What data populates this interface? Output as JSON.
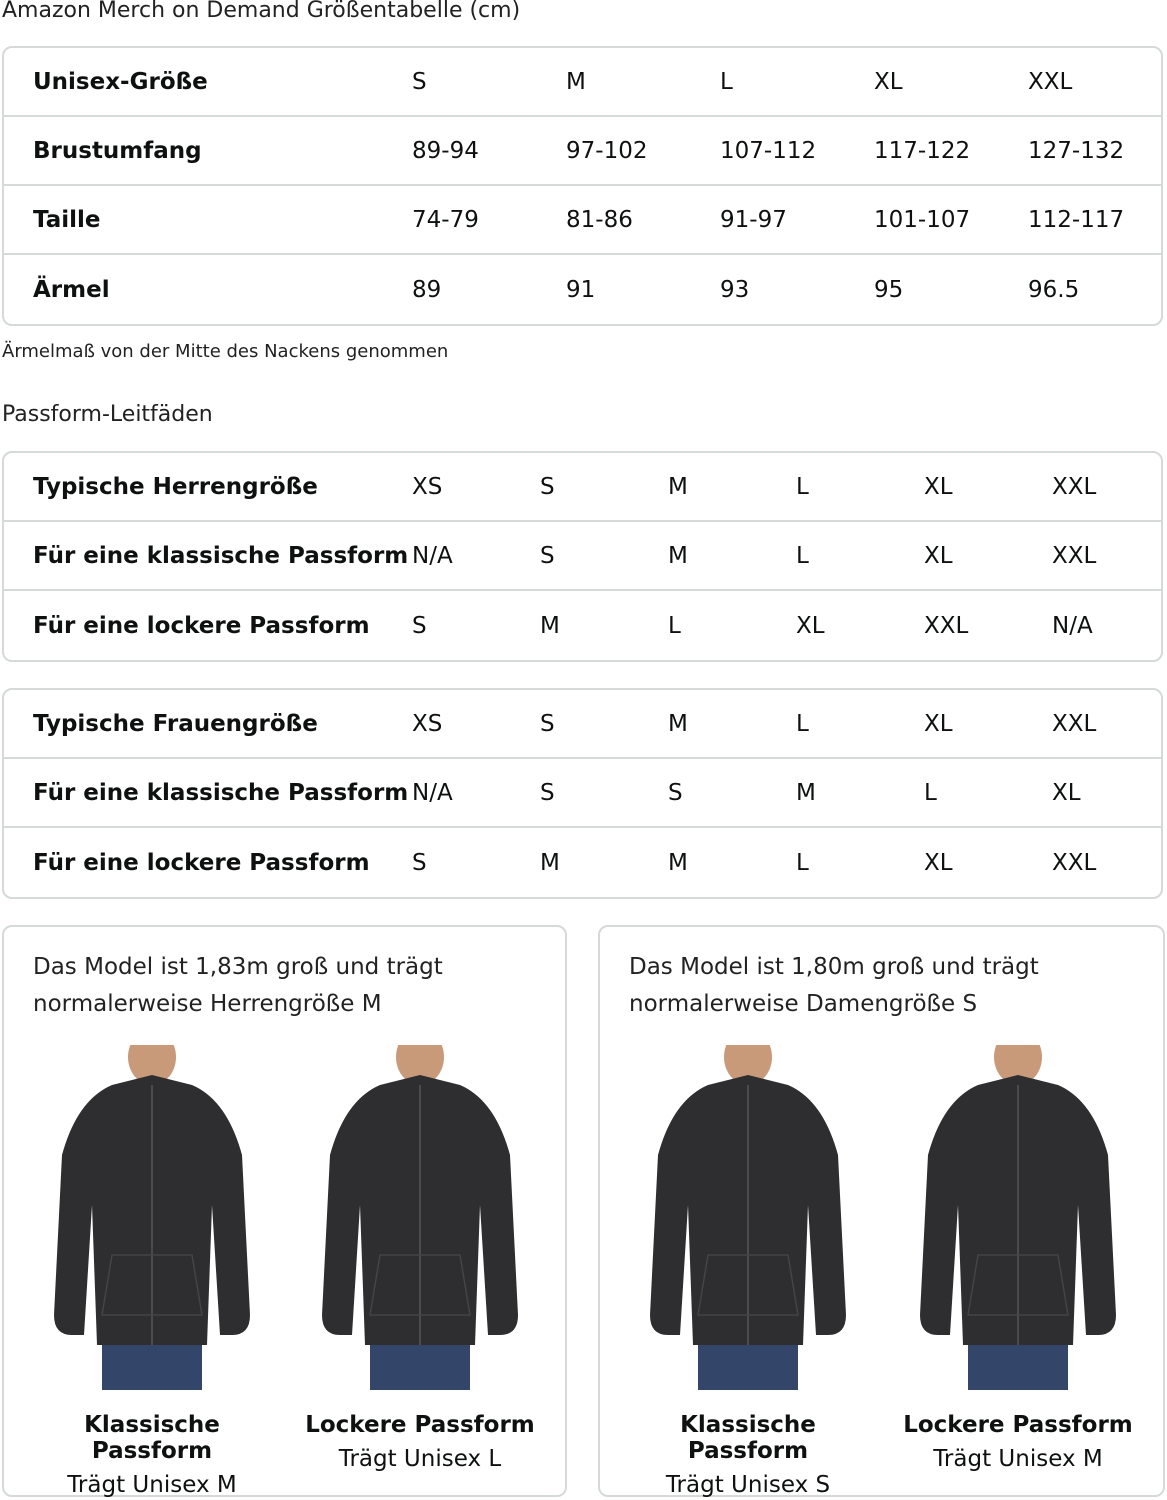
{
  "title": "Amazon Merch on Demand Größentabelle (cm)",
  "size_table": {
    "rows": [
      {
        "label": "Unisex-Größe",
        "values": [
          "S",
          "M",
          "L",
          "XL",
          "XXL"
        ]
      },
      {
        "label": "Brustumfang",
        "values": [
          "89-94",
          "97-102",
          "107-112",
          "117-122",
          "127-132"
        ]
      },
      {
        "label": "Taille",
        "values": [
          "74-79",
          "81-86",
          "91-97",
          "101-107",
          "112-117"
        ]
      },
      {
        "label": "Ärmel",
        "values": [
          "89",
          "91",
          "93",
          "95",
          "96.5"
        ]
      }
    ]
  },
  "note": "Ärmelmaß von der Mitte des Nackens genommen",
  "fit_title": "Passform-Leitfäden",
  "men_table": {
    "rows": [
      {
        "label": "Typische Herrengröße",
        "values": [
          "XS",
          "S",
          "M",
          "L",
          "XL",
          "XXL"
        ]
      },
      {
        "label": "Für eine klassische Passform",
        "values": [
          "N/A",
          "S",
          "M",
          "L",
          "XL",
          "XXL"
        ]
      },
      {
        "label": "Für eine lockere Passform",
        "values": [
          "S",
          "M",
          "L",
          "XL",
          "XXL",
          "N/A"
        ]
      }
    ]
  },
  "women_table": {
    "rows": [
      {
        "label": "Typische Frauengröße",
        "values": [
          "XS",
          "S",
          "M",
          "L",
          "XL",
          "XXL"
        ]
      },
      {
        "label": "Für eine klassische Passform",
        "values": [
          "N/A",
          "S",
          "S",
          "M",
          "L",
          "XL"
        ]
      },
      {
        "label": "Für eine lockere Passform",
        "values": [
          "S",
          "M",
          "M",
          "L",
          "XL",
          "XXL"
        ]
      }
    ]
  },
  "cards": [
    {
      "desc": "Das Model ist 1,83m groß und trägt normalerweise Herrengröße M",
      "figures": [
        {
          "fit": "Klassische Passform",
          "wears": "Trägt Unisex M"
        },
        {
          "fit": "Lockere Passform",
          "wears": "Trägt Unisex L"
        }
      ]
    },
    {
      "desc": "Das Model ist 1,80m groß und trägt normalerweise Damengröße S",
      "figures": [
        {
          "fit": "Klassische Passform",
          "wears": "Trägt Unisex S"
        },
        {
          "fit": "Lockere Passform",
          "wears": "Trägt Unisex M"
        }
      ]
    }
  ],
  "colors": {
    "hoodie": "#2e2e30",
    "jeans": "#33466a",
    "border": "#d5d9d9"
  }
}
